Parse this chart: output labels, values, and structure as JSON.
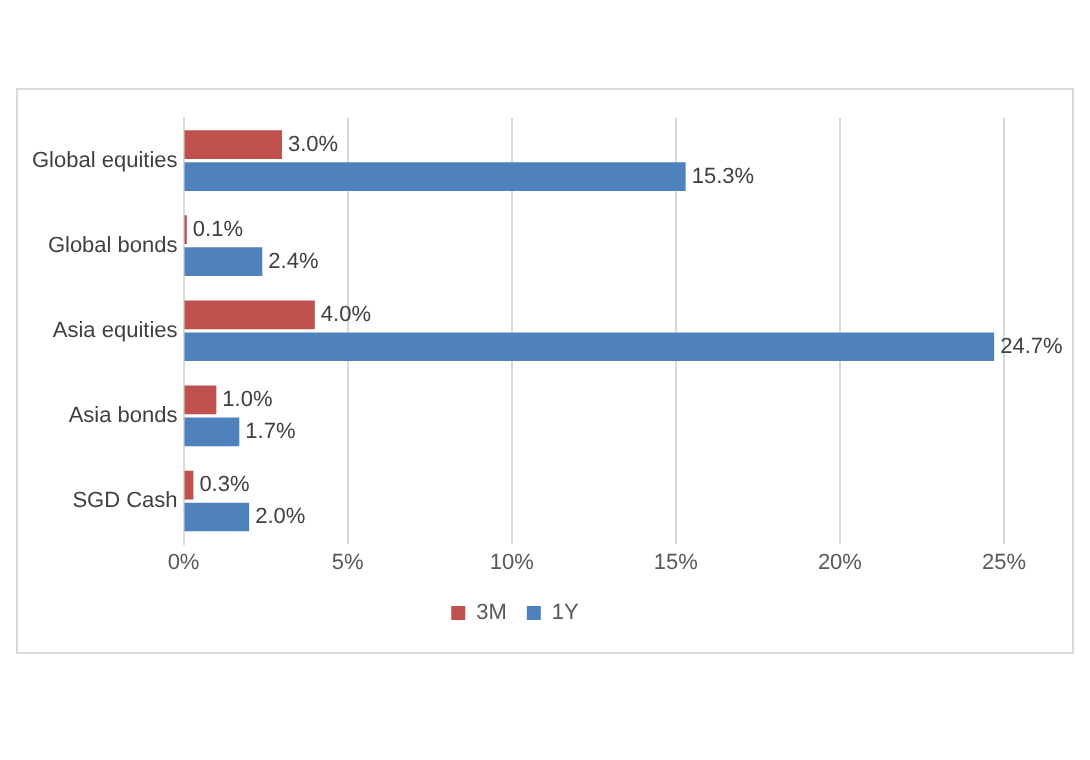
{
  "chart_data": {
    "type": "bar",
    "orientation": "horizontal",
    "categories": [
      "Global equities",
      "Global bonds",
      "Asia equities",
      "Asia bonds",
      "SGD Cash"
    ],
    "series": [
      {
        "name": "3M",
        "color": "#c0504d",
        "values": [
          3.0,
          0.1,
          4.0,
          1.0,
          0.3
        ],
        "value_labels": [
          "3.0%",
          "0.1%",
          "4.0%",
          "1.0%",
          "0.3%"
        ]
      },
      {
        "name": "1Y",
        "color": "#4f81bd",
        "values": [
          15.3,
          2.4,
          24.7,
          1.7,
          2.0
        ],
        "value_labels": [
          "15.3%",
          "2.4%",
          "24.7%",
          "1.7%",
          "2.0%"
        ]
      }
    ],
    "xlim": [
      0,
      25
    ],
    "xticks": [
      {
        "value": 0,
        "label": "0%"
      },
      {
        "value": 5,
        "label": "5%"
      },
      {
        "value": 10,
        "label": "10%"
      },
      {
        "value": 15,
        "label": "15%"
      },
      {
        "value": 20,
        "label": "20%"
      },
      {
        "value": 25,
        "label": "25%"
      }
    ],
    "grid": "x",
    "legend": "bottom"
  }
}
